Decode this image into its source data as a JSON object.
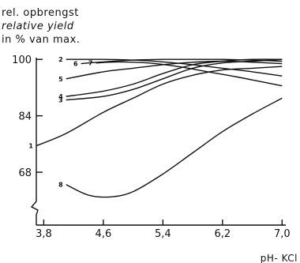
{
  "chart_data": {
    "type": "line",
    "ylabel_lines": [
      "rel. opbrengst",
      "relative yield",
      "in % van max."
    ],
    "xlabel": "pH- KCl",
    "x_ticks": [
      3.8,
      4.6,
      5.4,
      6.2,
      7.0
    ],
    "x_tick_labels": [
      "3,8",
      "4,6",
      "5,4",
      "6,2",
      "7,0"
    ],
    "y_ticks": [
      68,
      84,
      100
    ],
    "y_tick_labels": [
      "68",
      "84",
      "100"
    ],
    "xlim": [
      3.7,
      7.05
    ],
    "ylim": [
      53,
      100.5
    ],
    "series": [
      {
        "label": "1",
        "x": [
          3.7,
          4.1,
          4.6,
          5.0,
          5.4,
          5.8,
          6.2,
          6.6,
          7.0
        ],
        "y": [
          75.5,
          79.0,
          85.0,
          89.0,
          93.0,
          95.5,
          97.0,
          97.5,
          98.0
        ]
      },
      {
        "label": "2",
        "x": [
          4.1,
          4.6,
          5.0,
          5.4,
          5.8,
          6.2,
          6.6,
          7.0
        ],
        "y": [
          100.0,
          100.0,
          99.8,
          99.3,
          98.5,
          97.5,
          96.5,
          95.3
        ]
      },
      {
        "label": "3",
        "x": [
          4.1,
          4.6,
          5.0,
          5.4,
          5.8,
          6.2,
          6.6,
          7.0
        ],
        "y": [
          88.5,
          89.5,
          91.5,
          94.5,
          97.5,
          99.0,
          99.5,
          100.0
        ]
      },
      {
        "label": "4",
        "x": [
          4.1,
          4.6,
          5.0,
          5.4,
          5.8,
          6.2,
          6.6,
          7.0
        ],
        "y": [
          89.5,
          91.0,
          93.0,
          96.0,
          98.5,
          99.5,
          100.0,
          100.0
        ]
      },
      {
        "label": "5",
        "x": [
          4.1,
          4.6,
          5.0,
          5.4,
          5.8,
          6.2,
          6.6,
          7.0
        ],
        "y": [
          94.5,
          96.5,
          97.5,
          98.5,
          99.2,
          99.5,
          99.2,
          98.8
        ]
      },
      {
        "label": "6",
        "x": [
          4.3,
          4.6,
          5.0,
          5.4,
          5.8,
          6.2,
          6.6,
          7.0
        ],
        "y": [
          98.8,
          99.3,
          99.8,
          100.0,
          100.0,
          100.0,
          99.8,
          99.5
        ]
      },
      {
        "label": "7",
        "x": [
          4.5,
          4.8,
          5.2,
          5.6,
          6.0,
          6.4,
          7.0
        ],
        "y": [
          99.0,
          99.3,
          99.0,
          98.0,
          96.5,
          95.0,
          92.5
        ]
      },
      {
        "label": "8",
        "x": [
          4.1,
          4.4,
          4.7,
          5.0,
          5.4,
          5.8,
          6.2,
          6.6,
          7.0
        ],
        "y": [
          64.5,
          61.5,
          61.0,
          62.5,
          67.5,
          73.5,
          79.5,
          84.5,
          89.0
        ]
      }
    ]
  }
}
